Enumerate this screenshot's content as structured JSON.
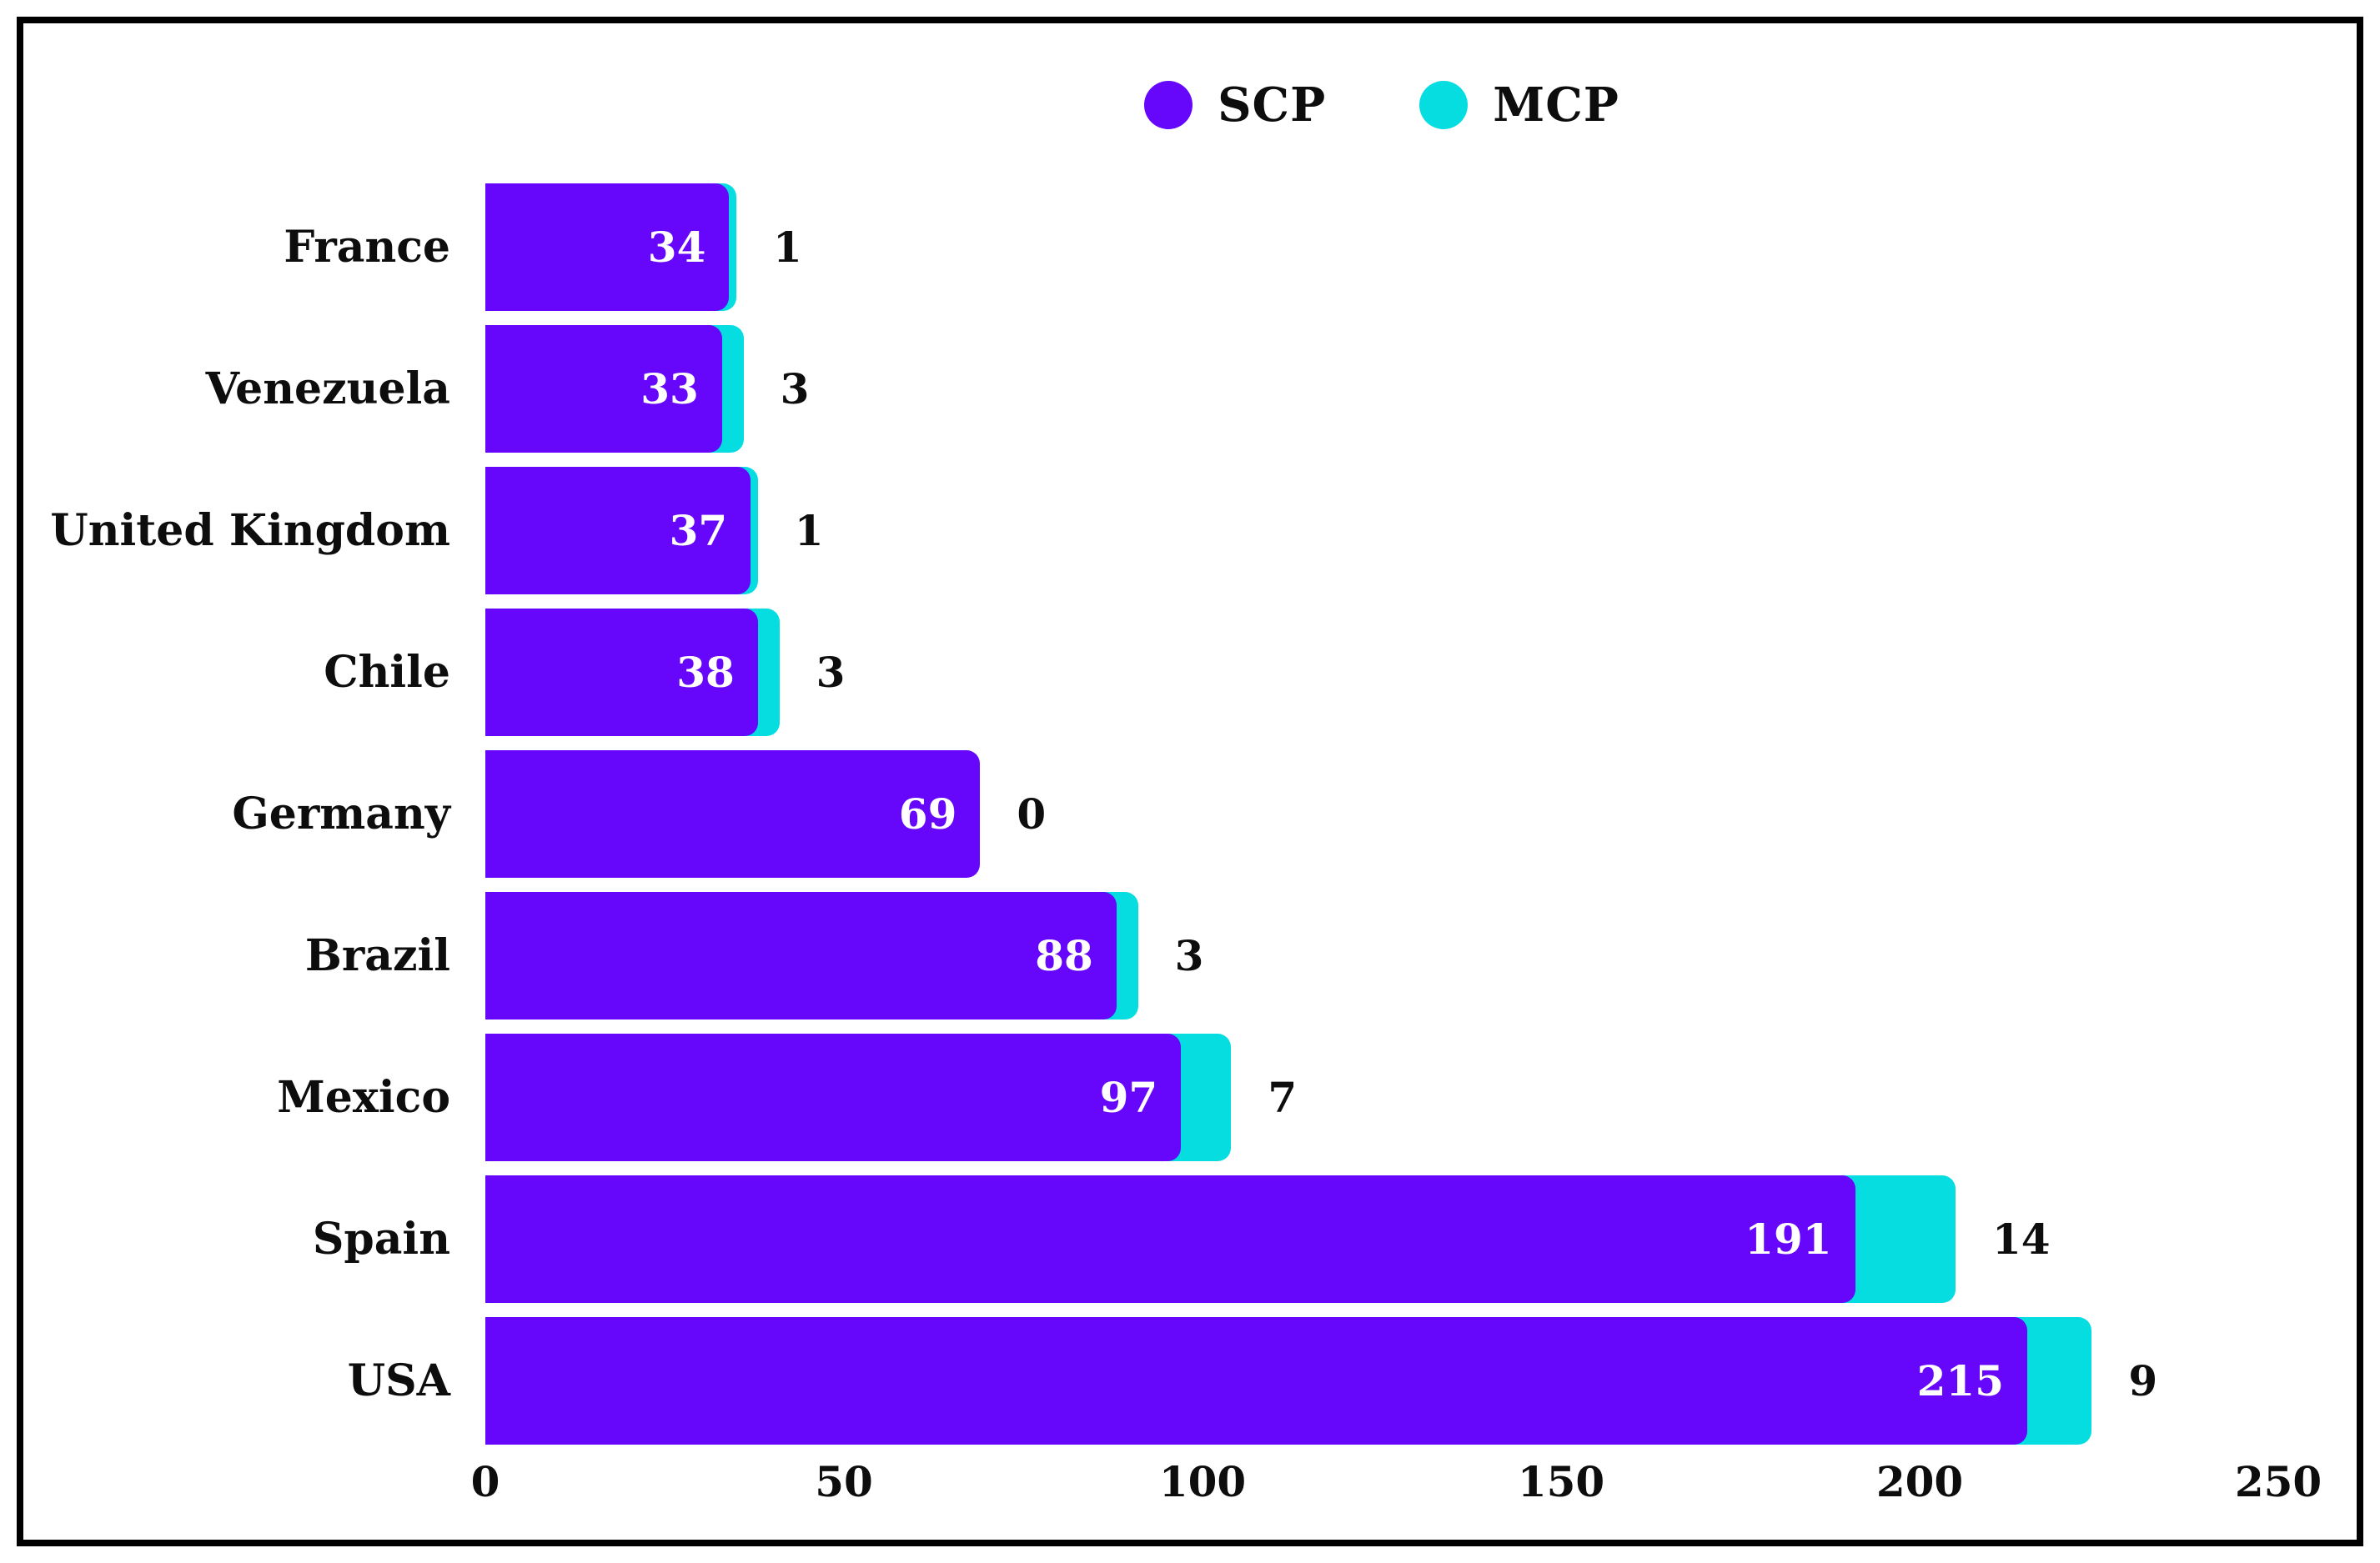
{
  "chart_data": {
    "type": "bar",
    "orientation": "horizontal",
    "categories": [
      "France",
      "Venezuela",
      "United Kingdom",
      "Chile",
      "Germany",
      "Brazil",
      "Mexico",
      "Spain",
      "USA"
    ],
    "series": [
      {
        "name": "SCP",
        "color": "#6606fa",
        "values": [
          34,
          33,
          37,
          38,
          69,
          88,
          97,
          191,
          215
        ]
      },
      {
        "name": "MCP",
        "color": "#05dde1",
        "values": [
          1,
          3,
          1,
          3,
          0,
          3,
          7,
          14,
          9
        ]
      }
    ],
    "x_axis": {
      "ticks": [
        "0",
        "50",
        "100",
        "150",
        "200",
        "250"
      ],
      "min": 0,
      "max": 250
    },
    "ylabel": "",
    "xlabel": "",
    "title": "",
    "grid": false,
    "legend_position": "top-center",
    "bar_value_label_color_scp": "#ffffff",
    "bar_value_label_color_mcp": "#0d0d0d",
    "border_color": "#000000"
  }
}
